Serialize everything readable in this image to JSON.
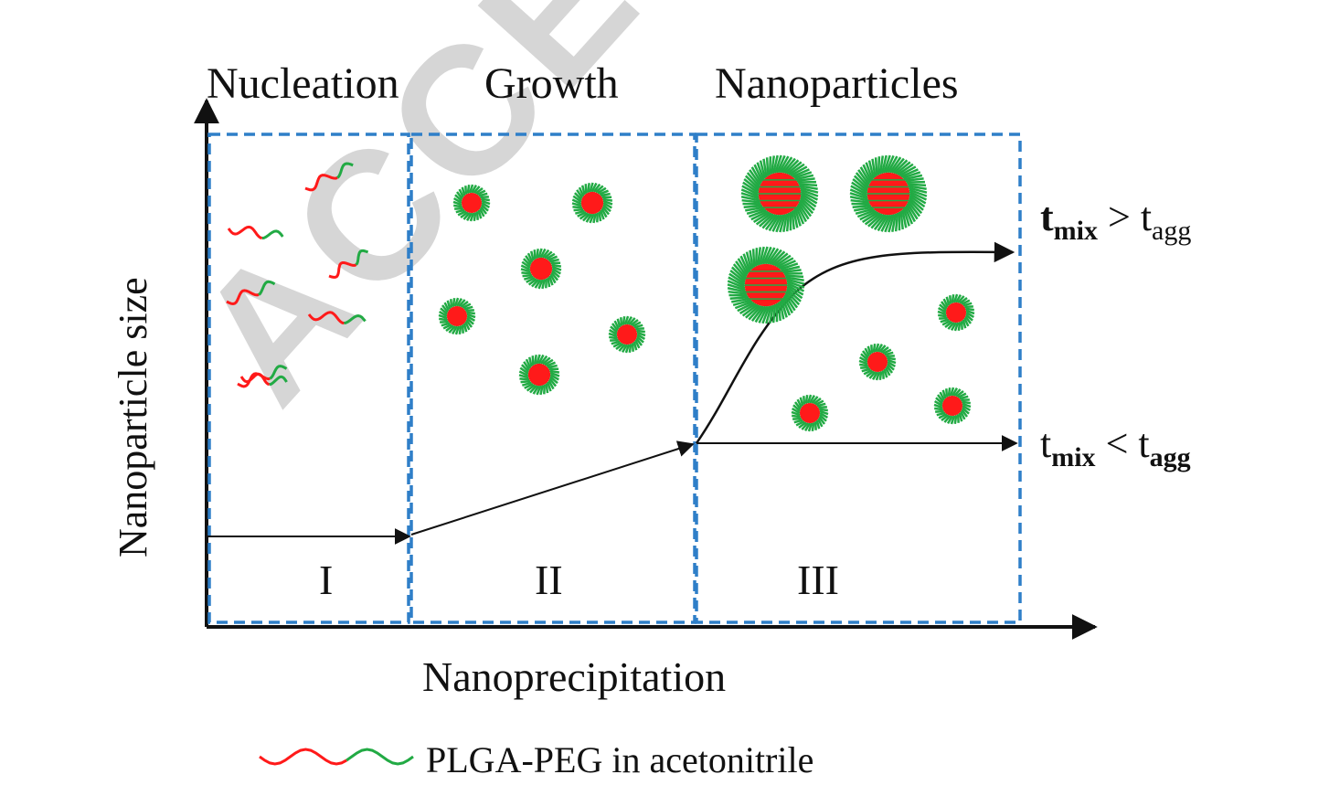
{
  "watermark": "ACCEPTED MANUSCRIPT",
  "phases": [
    {
      "title": "Nucleation",
      "numeral": "I"
    },
    {
      "title": "Growth",
      "numeral": "II"
    },
    {
      "title": "Nanoparticles",
      "numeral": "III"
    }
  ],
  "y_axis_label": "Nanoparticle size",
  "x_axis_label": "Nanoprecipitation",
  "conditions": {
    "slow": {
      "t1": "t",
      "s1": "mix",
      "op": ">",
      "t2": "t",
      "s2": "agg"
    },
    "fast": {
      "t1": "t",
      "s1": "mix",
      "op": "<",
      "t2": "t",
      "s2": "agg"
    }
  },
  "legend": {
    "label": "PLGA-PEG in acetonitrile"
  },
  "colors": {
    "box": "#2f7fc8",
    "plga": "#ff1a1a",
    "peg": "#22aa44",
    "axis": "#111111",
    "watermark": "#d6d6d6"
  }
}
